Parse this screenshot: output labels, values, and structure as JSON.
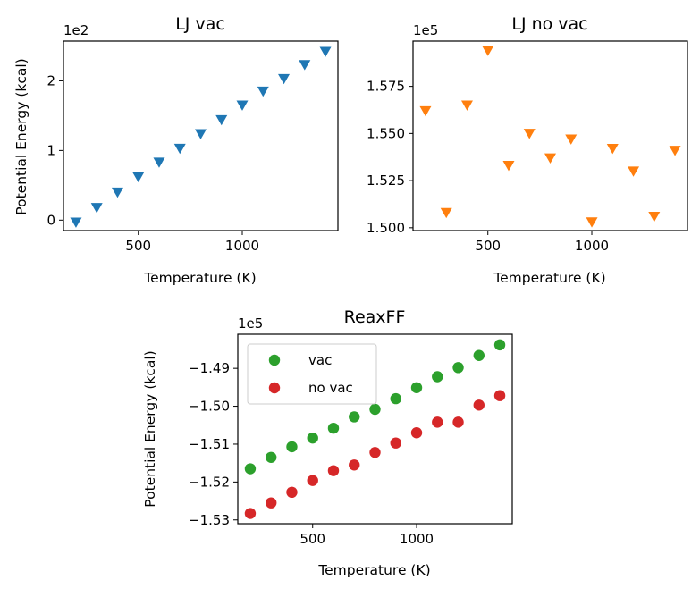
{
  "colors": {
    "blue": "#1f77b4",
    "orange": "#ff7f0e",
    "green": "#2ca02c",
    "red": "#d62728"
  },
  "chart_data": [
    {
      "type": "scatter",
      "title": "LJ vac",
      "xlabel": "Temperature (K)",
      "ylabel": "Potential Energy (kcal)",
      "offset_text": "1e2",
      "marker": "triangle-down",
      "xlim": [
        140,
        1460
      ],
      "ylim": [
        -0.15,
        2.57
      ],
      "xticks": [
        500,
        1000
      ],
      "xtick_labels": [
        "500",
        "1000"
      ],
      "yticks": [
        0,
        1,
        2
      ],
      "ytick_labels": [
        "0",
        "1",
        "2"
      ],
      "series": [
        {
          "color": "blue",
          "x": [
            200,
            300,
            400,
            500,
            600,
            700,
            800,
            900,
            1000,
            1100,
            1200,
            1300,
            1400
          ],
          "y": [
            -0.03,
            0.18,
            0.4,
            0.62,
            0.83,
            1.03,
            1.24,
            1.44,
            1.65,
            1.85,
            2.03,
            2.23,
            2.42
          ]
        }
      ]
    },
    {
      "type": "scatter",
      "title": "LJ no vac",
      "xlabel": "Temperature (K)",
      "ylabel": "",
      "offset_text": "1e5",
      "marker": "triangle-down",
      "xlim": [
        140,
        1460
      ],
      "ylim": [
        1.4985,
        1.599
      ],
      "xticks": [
        500,
        1000
      ],
      "xtick_labels": [
        "500",
        "1000"
      ],
      "yticks": [
        1.5,
        1.525,
        1.55,
        1.575
      ],
      "ytick_labels": [
        "1.500",
        "1.525",
        "1.550",
        "1.575"
      ],
      "series": [
        {
          "color": "orange",
          "x": [
            200,
            300,
            400,
            500,
            600,
            700,
            800,
            900,
            1000,
            1100,
            1200,
            1300,
            1400
          ],
          "y": [
            1.562,
            1.508,
            1.565,
            1.594,
            1.533,
            1.55,
            1.537,
            1.547,
            1.503,
            1.542,
            1.53,
            1.506,
            1.541
          ]
        }
      ]
    },
    {
      "type": "scatter",
      "title": "ReaxFF",
      "xlabel": "Temperature (K)",
      "ylabel": "Potential Energy (kcal)",
      "offset_text": "1e5",
      "marker": "circle",
      "xlim": [
        140,
        1460
      ],
      "ylim": [
        -1.531,
        -1.481
      ],
      "xticks": [
        500,
        1000
      ],
      "xtick_labels": [
        "500",
        "1000"
      ],
      "yticks": [
        -1.53,
        -1.52,
        -1.51,
        -1.5,
        -1.49
      ],
      "ytick_labels": [
        "−1.53",
        "−1.52",
        "−1.51",
        "−1.50",
        "−1.49"
      ],
      "legend_position": "upper-left",
      "series": [
        {
          "name": "vac",
          "color": "green",
          "x": [
            200,
            300,
            400,
            500,
            600,
            700,
            800,
            900,
            1000,
            1100,
            1200,
            1300,
            1400
          ],
          "y": [
            -1.5165,
            -1.5135,
            -1.5107,
            -1.5084,
            -1.5058,
            -1.5028,
            -1.5008,
            -1.498,
            -1.4951,
            -1.4922,
            -1.4898,
            -1.4866,
            -1.4838
          ]
        },
        {
          "name": "no vac",
          "color": "red",
          "x": [
            200,
            300,
            400,
            500,
            600,
            700,
            800,
            900,
            1000,
            1100,
            1200,
            1300,
            1400
          ],
          "y": [
            -1.5283,
            -1.5255,
            -1.5227,
            -1.5196,
            -1.517,
            -1.5155,
            -1.5122,
            -1.5097,
            -1.507,
            -1.5042,
            -1.5042,
            -1.4997,
            -1.4972
          ]
        }
      ]
    }
  ]
}
